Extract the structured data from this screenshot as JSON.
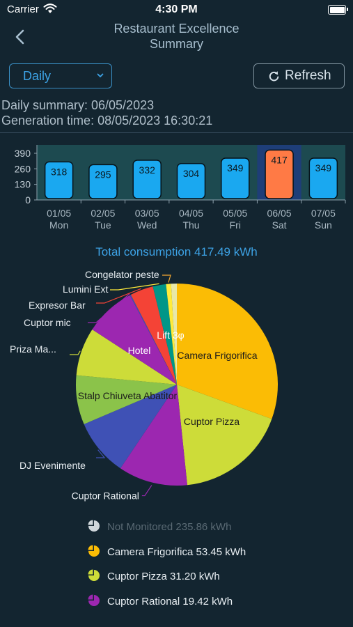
{
  "status_bar": {
    "carrier": "Carrier",
    "time": "4:30 PM"
  },
  "header": {
    "title_line1": "Restaurant Excellence",
    "title_line2": "Summary"
  },
  "controls": {
    "period_label": "Daily",
    "refresh_label": "Refresh"
  },
  "summary": {
    "daily_line": "Daily summary: 06/05/2023",
    "generation_line": "Generation time: 08/05/2023 16:30:21"
  },
  "colors": {
    "accent": "#3da3e6",
    "bar_normal": "#1aa8f0",
    "bar_selected": "#ff7a45",
    "background": "#132530"
  },
  "pie_title": "Total consumption 417.49 kWh",
  "chart_data": [
    {
      "type": "bar",
      "categories": [
        "01/05",
        "02/05",
        "03/05",
        "04/05",
        "05/05",
        "06/05",
        "07/05"
      ],
      "days": [
        "Mon",
        "Tue",
        "Wed",
        "Thu",
        "Fri",
        "Sat",
        "Sun"
      ],
      "values": [
        318,
        295,
        332,
        304,
        349,
        417,
        349
      ],
      "selected_index": 5,
      "y_ticks": [
        0,
        130,
        260,
        390
      ],
      "ylim": [
        0,
        390
      ],
      "grid": false,
      "data_labels": true
    },
    {
      "type": "pie",
      "labels": [
        "Camera Frigorifica",
        "Cuptor Pizza",
        "Cuptor Rational",
        "DJ Evenimente",
        "Stalp Chiuveta Abatitor",
        "Priza Ma...",
        "Hotel",
        "Cuptor mic",
        "Expresor Bar",
        "Lumini Ext",
        "Congelator peste",
        "Lift 3φ"
      ],
      "values": [
        53.45,
        31.2,
        19.42,
        16.0,
        13.8,
        13.5,
        14.2,
        0.3,
        6.5,
        3.7,
        1.4,
        1.6
      ],
      "colors": [
        "#fbbc05",
        "#cddc39",
        "#9c27b0",
        "#3f51b5",
        "#8bc34a",
        "#cddc39",
        "#9c27b0",
        "#3f51b5",
        "#f44336",
        "#009688",
        "#ffeb3b",
        "#e8e8a8"
      ],
      "legend_position": "bottom"
    }
  ],
  "legend": [
    {
      "text": "Not Monitored 235.86 kWh",
      "color": "#cfd6da",
      "dim": true
    },
    {
      "text": "Camera Frigorifica 53.45 kWh",
      "color": "#fbbc05",
      "dim": false
    },
    {
      "text": "Cuptor Pizza 31.20 kWh",
      "color": "#cddc39",
      "dim": false
    },
    {
      "text": "Cuptor Rational 19.42 kWh",
      "color": "#9c27b0",
      "dim": false
    }
  ]
}
